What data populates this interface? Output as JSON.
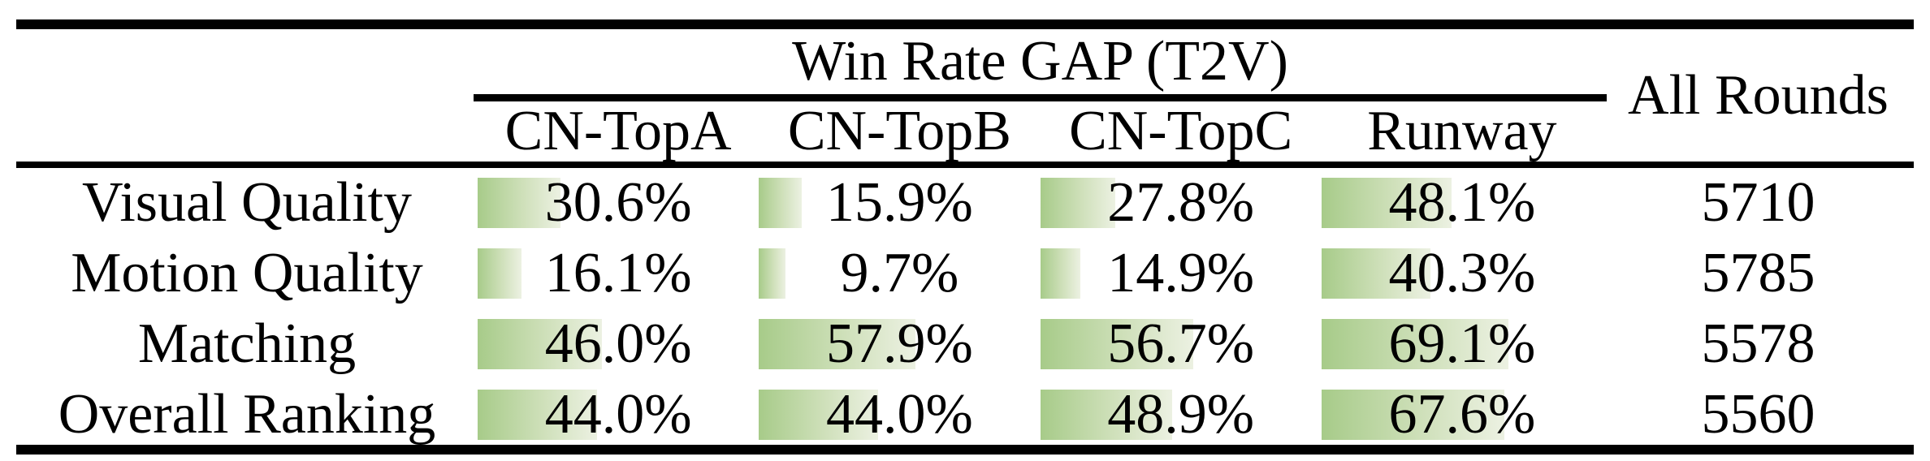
{
  "table": {
    "group_header": "Win Rate GAP (T2V)",
    "all_rounds_header": "All Rounds",
    "columns": [
      "CN-TopA",
      "CN-TopB",
      "CN-TopC",
      "Runway"
    ],
    "rows": [
      {
        "label": "Visual Quality",
        "cells": [
          {
            "text": "30.6%",
            "pct": 30.6
          },
          {
            "text": "15.9%",
            "pct": 15.9
          },
          {
            "text": "27.8%",
            "pct": 27.8
          },
          {
            "text": "48.1%",
            "pct": 48.1
          }
        ],
        "all_rounds": "5710"
      },
      {
        "label": "Motion Quality",
        "cells": [
          {
            "text": "16.1%",
            "pct": 16.1
          },
          {
            "text": "9.7%",
            "pct": 9.7
          },
          {
            "text": "14.9%",
            "pct": 14.9
          },
          {
            "text": "40.3%",
            "pct": 40.3
          }
        ],
        "all_rounds": "5785"
      },
      {
        "label": "Matching",
        "cells": [
          {
            "text": "46.0%",
            "pct": 46.0
          },
          {
            "text": "57.9%",
            "pct": 57.9
          },
          {
            "text": "56.7%",
            "pct": 56.7
          },
          {
            "text": "69.1%",
            "pct": 69.1
          }
        ],
        "all_rounds": "5578"
      },
      {
        "label": "Overall Ranking",
        "cells": [
          {
            "text": "44.0%",
            "pct": 44.0
          },
          {
            "text": "44.0%",
            "pct": 44.0
          },
          {
            "text": "48.9%",
            "pct": 48.9
          },
          {
            "text": "67.6%",
            "pct": 67.6
          }
        ],
        "all_rounds": "5560"
      }
    ],
    "bar_color_start": "#a7cb89",
    "bar_color_end": "#ecf1e2"
  },
  "chart_data": {
    "type": "table",
    "title": "Win Rate GAP (T2V)",
    "categories": [
      "Visual Quality",
      "Motion Quality",
      "Matching",
      "Overall Ranking"
    ],
    "series": [
      {
        "name": "CN-TopA",
        "values": [
          30.6,
          16.1,
          46.0,
          44.0
        ]
      },
      {
        "name": "CN-TopB",
        "values": [
          15.9,
          9.7,
          57.9,
          44.0
        ]
      },
      {
        "name": "CN-TopC",
        "values": [
          27.8,
          14.9,
          56.7,
          48.9
        ]
      },
      {
        "name": "Runway",
        "values": [
          48.1,
          40.3,
          69.1,
          67.6
        ]
      }
    ],
    "all_rounds": [
      5710,
      5785,
      5578,
      5560
    ],
    "unit": "%",
    "bar_scale": [
      0,
      100
    ]
  }
}
